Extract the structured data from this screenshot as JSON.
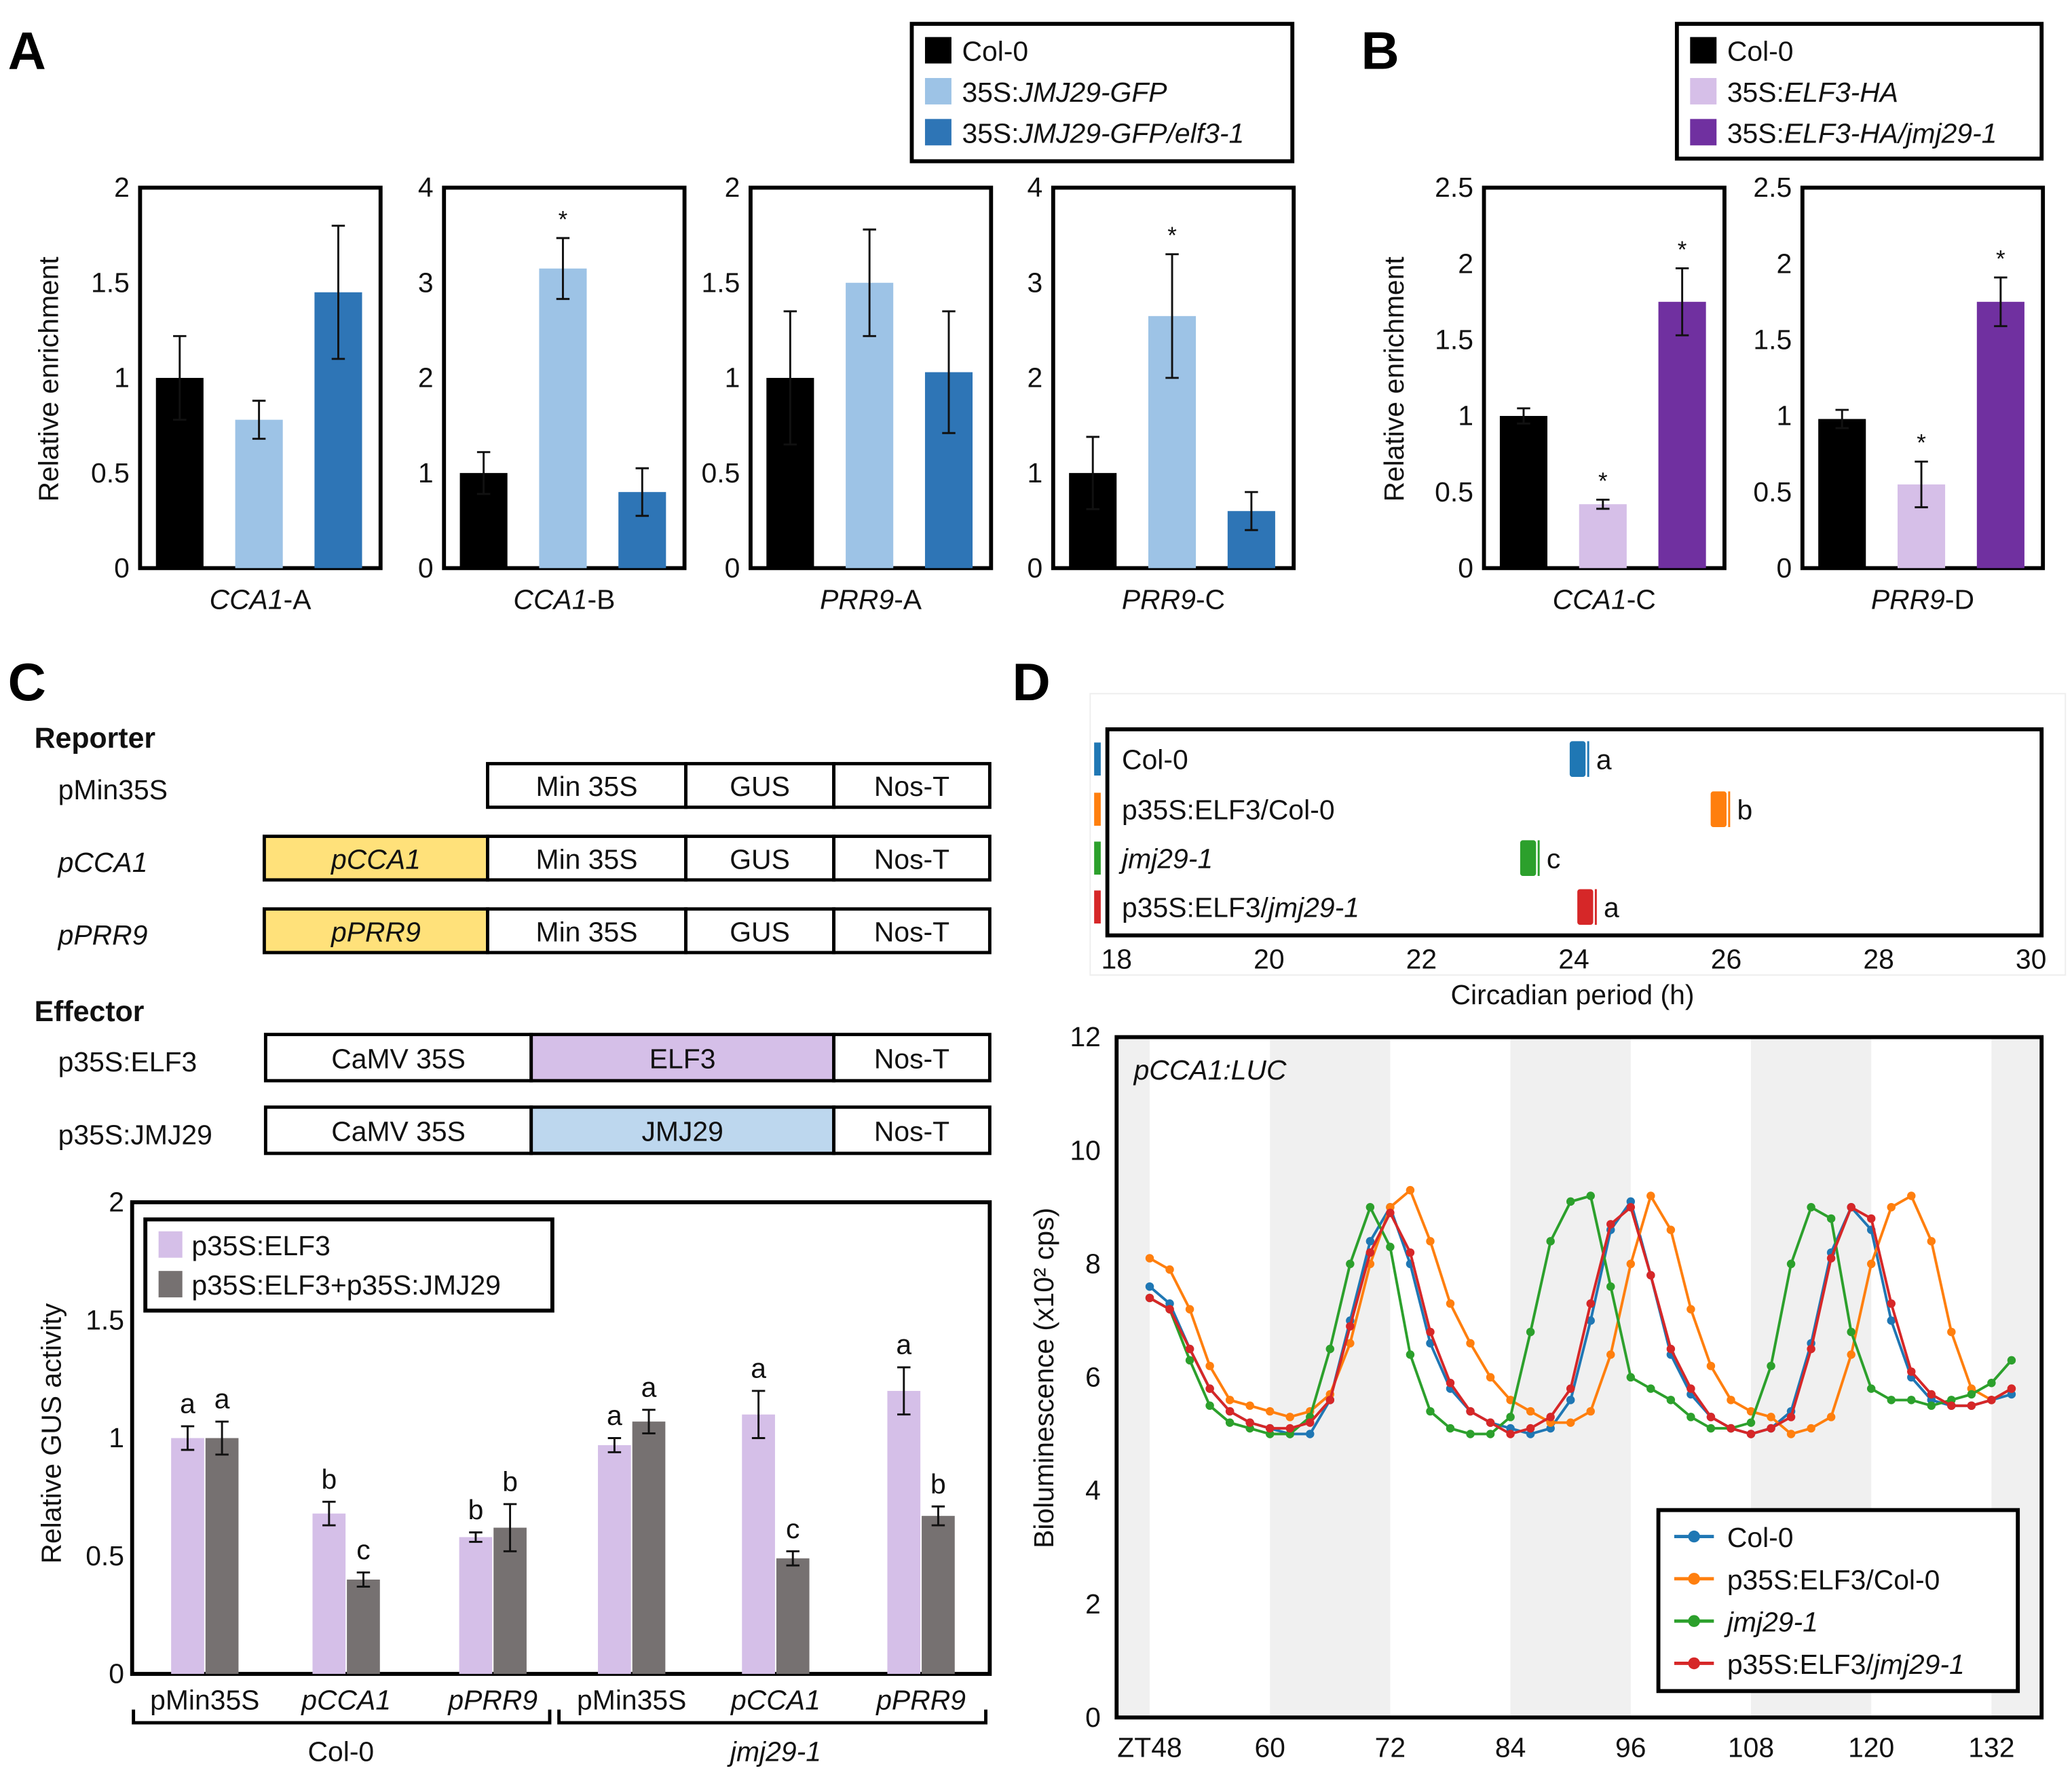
{
  "panel_labels": {
    "a": "A",
    "b": "B",
    "c": "C",
    "d": "D"
  },
  "chart_data": [
    {
      "id": "A",
      "type": "bar",
      "ylabel": "Relative enrichment",
      "legend": [
        {
          "name": "Col-0",
          "italic_part": "",
          "color": "#000000"
        },
        {
          "name": "35S:",
          "italic_part": "JMJ29-GFP",
          "color": "#9DC3E6"
        },
        {
          "name": "35S:",
          "italic_part": "JMJ29-GFP/elf3-1",
          "color": "#2E75B6"
        }
      ],
      "legend_placement": "top-right",
      "subplots": [
        {
          "gene": "CCA1",
          "suffix": "-A",
          "ylim": [
            0,
            2
          ],
          "yticks": [
            "0",
            "0.5",
            "1",
            "1.5",
            "2"
          ],
          "values": [
            1.0,
            0.78,
            1.45
          ],
          "errors": [
            0.22,
            0.1,
            0.35
          ],
          "marks": [
            "",
            "",
            ""
          ]
        },
        {
          "gene": "CCA1",
          "suffix": "-B",
          "ylim": [
            0,
            4
          ],
          "yticks": [
            "0",
            "1",
            "2",
            "3",
            "4"
          ],
          "values": [
            1.0,
            3.15,
            0.8
          ],
          "errors": [
            0.22,
            0.32,
            0.25
          ],
          "marks": [
            "",
            "*",
            ""
          ]
        },
        {
          "gene": "PRR9",
          "suffix": "-A",
          "ylim": [
            0,
            2
          ],
          "yticks": [
            "0",
            "0.5",
            "1",
            "1.5",
            "2"
          ],
          "values": [
            1.0,
            1.5,
            1.03
          ],
          "errors": [
            0.35,
            0.28,
            0.32
          ],
          "marks": [
            "",
            "",
            ""
          ]
        },
        {
          "gene": "PRR9",
          "suffix": "-C",
          "ylim": [
            0,
            4
          ],
          "yticks": [
            "0",
            "1",
            "2",
            "3",
            "4"
          ],
          "values": [
            1.0,
            2.65,
            0.6
          ],
          "errors": [
            0.38,
            0.65,
            0.2
          ],
          "marks": [
            "",
            "*",
            ""
          ]
        }
      ]
    },
    {
      "id": "B",
      "type": "bar",
      "ylabel": "Relative enrichment",
      "legend": [
        {
          "name": "Col-0",
          "italic_part": "",
          "color": "#000000"
        },
        {
          "name": "35S:",
          "italic_part": "ELF3-HA",
          "color": "#D6BFE8"
        },
        {
          "name": "35S:",
          "italic_part": "ELF3-HA/jmj29-1",
          "color": "#7030A0"
        }
      ],
      "legend_placement": "top-right",
      "subplots": [
        {
          "gene": "CCA1",
          "suffix": "-C",
          "ylim": [
            0,
            2.5
          ],
          "yticks": [
            "0",
            "0.5",
            "1",
            "1.5",
            "2",
            "2.5"
          ],
          "values": [
            1.0,
            0.42,
            1.75
          ],
          "errors": [
            0.05,
            0.03,
            0.22
          ],
          "marks": [
            "",
            "*",
            "*"
          ]
        },
        {
          "gene": "PRR9",
          "suffix": "-D",
          "ylim": [
            0,
            2.5
          ],
          "yticks": [
            "0",
            "0.5",
            "1",
            "1.5",
            "2",
            "2.5"
          ],
          "values": [
            0.98,
            0.55,
            1.75
          ],
          "errors": [
            0.06,
            0.15,
            0.16
          ],
          "marks": [
            "",
            "*",
            "*"
          ]
        }
      ]
    },
    {
      "id": "C",
      "type": "bar",
      "ylabel": "Relative GUS activity",
      "ylim": [
        0,
        2
      ],
      "yticks": [
        "0",
        "0.5",
        "1",
        "1.5",
        "2"
      ],
      "legend_placement": "top-left",
      "series": [
        {
          "name": "p35S:ELF3",
          "color": "#D5BFE8",
          "values": [
            1.0,
            0.68,
            0.58,
            0.97,
            1.1,
            1.2
          ],
          "errors": [
            0.05,
            0.05,
            0.02,
            0.03,
            0.1,
            0.1
          ],
          "letters": [
            "a",
            "b",
            "b",
            "a",
            "a",
            "a"
          ]
        },
        {
          "name": "p35S:ELF3+p35S:JMJ29",
          "color": "#767171",
          "values": [
            1.0,
            0.4,
            0.62,
            1.07,
            0.49,
            0.67
          ],
          "errors": [
            0.07,
            0.03,
            0.1,
            0.05,
            0.03,
            0.04
          ],
          "letters": [
            "a",
            "c",
            "b",
            "a",
            "c",
            "b"
          ]
        }
      ],
      "categories": [
        {
          "label": "pMin35S",
          "italic": false
        },
        {
          "label": "pCCA1",
          "italic": true
        },
        {
          "label": "pPRR9",
          "italic": true
        },
        {
          "label": "pMin35S",
          "italic": false
        },
        {
          "label": "pCCA1",
          "italic": true
        },
        {
          "label": "pPRR9",
          "italic": true
        }
      ],
      "groups": [
        {
          "label": "Col-0",
          "italic": false
        },
        {
          "label": "jmj29-1",
          "italic": true
        }
      ]
    },
    {
      "id": "D-period",
      "type": "scatter",
      "xlabel": "Circadian period (h)",
      "xlim": [
        18,
        30
      ],
      "xticks": [
        "18",
        "20",
        "22",
        "24",
        "26",
        "28",
        "30"
      ],
      "rows": [
        {
          "name": "Col-0",
          "italic_part": "",
          "color": "#1F77B4",
          "value": 24.05,
          "letter": "a"
        },
        {
          "name": "p35S:ELF3/Col-0",
          "italic_part": "",
          "color": "#FF7F0E",
          "value": 25.9,
          "letter": "b"
        },
        {
          "name": "",
          "italic_part": "jmj29-1",
          "color": "#2CA02C",
          "value": 23.4,
          "letter": "c"
        },
        {
          "name": "p35S:ELF3/",
          "italic_part": "jmj29-1",
          "color": "#D62728",
          "value": 24.15,
          "letter": "a"
        }
      ]
    },
    {
      "id": "D-luc",
      "type": "line",
      "title": "pCCA1:LUC",
      "ylabel": "Bioluminescence (x10² cps)",
      "xlim": [
        44.7,
        137
      ],
      "ylim": [
        0,
        12
      ],
      "xticks": [
        {
          "v": 48,
          "label": "ZT48"
        },
        {
          "v": 60,
          "label": "60"
        },
        {
          "v": 72,
          "label": "72"
        },
        {
          "v": 84,
          "label": "84"
        },
        {
          "v": 96,
          "label": "96"
        },
        {
          "v": 108,
          "label": "108"
        },
        {
          "v": 120,
          "label": "120"
        },
        {
          "v": 132,
          "label": "132"
        }
      ],
      "yticks": [
        "0",
        "2",
        "4",
        "6",
        "8",
        "10",
        "12"
      ],
      "dark_periods": [
        [
          44.7,
          48
        ],
        [
          60,
          72
        ],
        [
          84,
          96
        ],
        [
          108,
          120
        ],
        [
          132,
          137
        ]
      ],
      "legend_placement": "bottom-right",
      "x": [
        48,
        50,
        52,
        54,
        56,
        58,
        60,
        62,
        64,
        66,
        68,
        70,
        72,
        74,
        76,
        78,
        80,
        82,
        84,
        86,
        88,
        90,
        92,
        94,
        96,
        98,
        100,
        102,
        104,
        106,
        108,
        110,
        112,
        114,
        116,
        118,
        120,
        122,
        124,
        126,
        128,
        130,
        132,
        134
      ],
      "series": [
        {
          "name": "Col-0",
          "italic_part": "",
          "color": "#1F77B4",
          "values": [
            7.6,
            7.3,
            6.5,
            5.8,
            5.4,
            5.2,
            5.1,
            5.0,
            5.0,
            5.6,
            7.0,
            8.4,
            9.0,
            8.0,
            6.6,
            5.8,
            5.4,
            5.2,
            5.1,
            5.0,
            5.1,
            5.6,
            7.0,
            8.6,
            9.1,
            7.8,
            6.4,
            5.7,
            5.3,
            5.1,
            5.0,
            5.1,
            5.4,
            6.6,
            8.2,
            9.0,
            8.6,
            7.0,
            6.0,
            5.6,
            5.5,
            5.5,
            5.6,
            5.7
          ]
        },
        {
          "name": "p35S:ELF3/Col-0",
          "italic_part": "",
          "color": "#FF7F0E",
          "values": [
            8.1,
            7.9,
            7.2,
            6.2,
            5.6,
            5.5,
            5.4,
            5.3,
            5.4,
            5.7,
            6.6,
            8.0,
            9.0,
            9.3,
            8.4,
            7.3,
            6.6,
            6.0,
            5.6,
            5.4,
            5.2,
            5.2,
            5.4,
            6.4,
            8.0,
            9.2,
            8.6,
            7.2,
            6.2,
            5.6,
            5.4,
            5.3,
            5.0,
            5.1,
            5.3,
            6.4,
            8.0,
            9.0,
            9.2,
            8.4,
            6.8,
            5.8,
            5.6,
            5.8
          ]
        },
        {
          "name": "",
          "italic_part": "jmj29-1",
          "color": "#2CA02C",
          "values": [
            7.4,
            7.2,
            6.3,
            5.5,
            5.2,
            5.1,
            5.0,
            5.0,
            5.3,
            6.5,
            8.0,
            9.0,
            8.3,
            6.4,
            5.4,
            5.1,
            5.0,
            5.0,
            5.3,
            6.8,
            8.4,
            9.1,
            9.2,
            7.6,
            6.0,
            5.8,
            5.6,
            5.3,
            5.1,
            5.1,
            5.2,
            6.2,
            8.0,
            9.0,
            8.8,
            6.8,
            5.8,
            5.6,
            5.6,
            5.5,
            5.6,
            5.7,
            5.9,
            6.3
          ]
        },
        {
          "name": "p35S:ELF3/",
          "italic_part": "jmj29-1",
          "color": "#D62728",
          "values": [
            7.4,
            7.2,
            6.5,
            5.8,
            5.4,
            5.2,
            5.1,
            5.1,
            5.2,
            5.6,
            6.9,
            8.2,
            8.9,
            8.2,
            6.8,
            5.9,
            5.4,
            5.2,
            5.0,
            5.1,
            5.3,
            5.8,
            7.3,
            8.7,
            9.0,
            7.8,
            6.5,
            5.8,
            5.3,
            5.1,
            5.0,
            5.1,
            5.3,
            6.5,
            8.1,
            9.0,
            8.8,
            7.3,
            6.1,
            5.7,
            5.5,
            5.5,
            5.6,
            5.8
          ]
        }
      ]
    }
  ],
  "constructs": {
    "reporter_heading": "Reporter",
    "effector_heading": "Effector",
    "reporters": [
      {
        "name": "pMin35S",
        "italic": false,
        "promoter": "",
        "parts": [
          "Min 35S",
          "GUS",
          "Nos-T"
        ]
      },
      {
        "name": "pCCA1",
        "italic": true,
        "promoter": "pCCA1",
        "parts": [
          "Min 35S",
          "GUS",
          "Nos-T"
        ]
      },
      {
        "name": "pPRR9",
        "italic": true,
        "promoter": "pPRR9",
        "parts": [
          "Min 35S",
          "GUS",
          "Nos-T"
        ]
      }
    ],
    "effectors": [
      {
        "name": "p35S:ELF3",
        "parts": [
          "CaMV 35S",
          "ELF3",
          "Nos-T"
        ],
        "color": "#D5BFE8"
      },
      {
        "name": "p35S:JMJ29",
        "parts": [
          "CaMV 35S",
          "JMJ29",
          "Nos-T"
        ],
        "color": "#BDD7EE"
      }
    ],
    "promoter_color": "#FFE17A"
  }
}
